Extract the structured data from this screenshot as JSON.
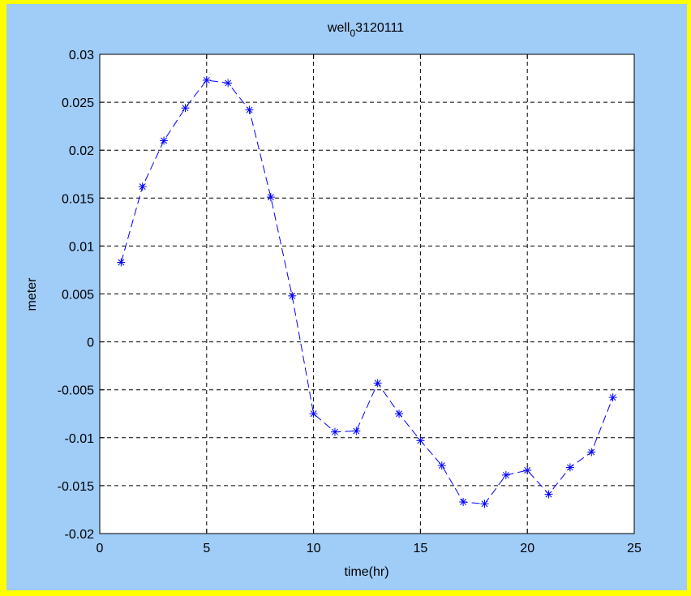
{
  "chart_data": {
    "type": "line",
    "title_main": "well",
    "title_sub": "0",
    "title_tail": "3120111",
    "xlabel": "time(hr)",
    "ylabel": "meter",
    "xlim": [
      0,
      25
    ],
    "ylim": [
      -0.02,
      0.03
    ],
    "xticks": [
      0,
      5,
      10,
      15,
      20,
      25
    ],
    "yticks": [
      0.03,
      0.025,
      0.02,
      0.015,
      0.01,
      0.005,
      0,
      -0.005,
      -0.01,
      -0.015,
      -0.02
    ],
    "xtick_labels": [
      "0",
      "5",
      "10",
      "15",
      "20",
      "25"
    ],
    "ytick_labels": [
      "0.03",
      "0.025",
      "0.02",
      "0.015",
      "0.01",
      "0.005",
      "0",
      "-0.005",
      "-0.01",
      "-0.015",
      "-0.02"
    ],
    "grid": true,
    "marker": "*",
    "line_style": "dashed",
    "series_color": "#0000ff",
    "x": [
      1,
      2,
      3,
      4,
      5,
      6,
      7,
      8,
      9,
      10,
      11,
      12,
      13,
      14,
      15,
      16,
      17,
      18,
      19,
      20,
      21,
      22,
      23,
      24
    ],
    "y": [
      0.0083,
      0.0162,
      0.021,
      0.0244,
      0.0273,
      0.027,
      0.0242,
      0.0151,
      0.0048,
      -0.0075,
      -0.0094,
      -0.0093,
      -0.0043,
      -0.0075,
      -0.0103,
      -0.0129,
      -0.0167,
      -0.0169,
      -0.0139,
      -0.0134,
      -0.0159,
      -0.0131,
      -0.0115,
      -0.0058
    ]
  }
}
